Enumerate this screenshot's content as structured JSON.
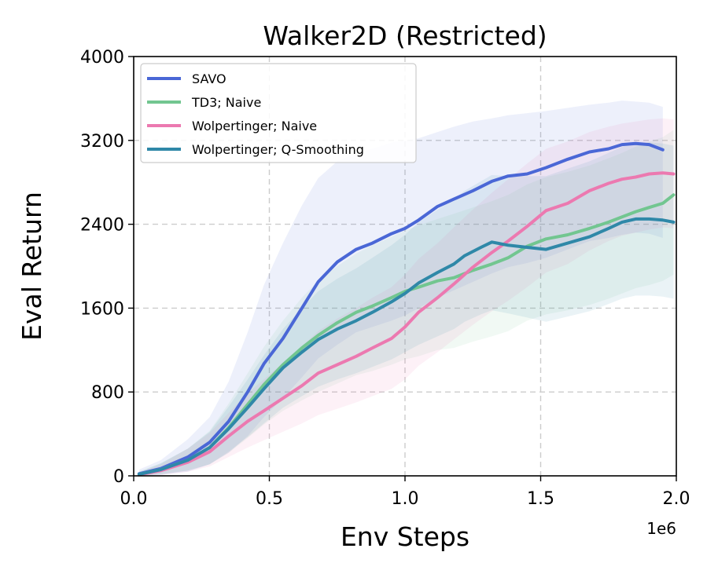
{
  "chart_data": {
    "type": "line",
    "title": "Walker2D (Restricted)",
    "xlabel": "Env Steps",
    "ylabel": "Eval Return",
    "x_offset_label": "1e6",
    "xlim": [
      0.0,
      2.0
    ],
    "ylim": [
      0,
      4000
    ],
    "xticks": [
      0.0,
      0.5,
      1.0,
      1.5,
      2.0
    ],
    "xtick_labels": [
      "0.0",
      "0.5",
      "1.0",
      "1.5",
      "2.0"
    ],
    "yticks": [
      0,
      800,
      1600,
      2400,
      3200,
      4000
    ],
    "ytick_labels": [
      "0",
      "800",
      "1600",
      "2400",
      "3200",
      "4000"
    ],
    "grid": true,
    "legend_position": "top-left",
    "series": [
      {
        "name": "SAVO",
        "color": "#4a67d6",
        "x": [
          0.02,
          0.1,
          0.2,
          0.28,
          0.35,
          0.42,
          0.48,
          0.55,
          0.62,
          0.68,
          0.75,
          0.82,
          0.88,
          0.95,
          1.0,
          1.05,
          1.12,
          1.18,
          1.25,
          1.32,
          1.38,
          1.45,
          1.52,
          1.6,
          1.68,
          1.75,
          1.8,
          1.85,
          1.9,
          1.95
        ],
        "y": [
          20,
          70,
          180,
          320,
          520,
          800,
          1070,
          1310,
          1600,
          1850,
          2040,
          2160,
          2220,
          2310,
          2360,
          2440,
          2570,
          2640,
          2720,
          2810,
          2860,
          2880,
          2940,
          3020,
          3090,
          3120,
          3160,
          3170,
          3160,
          3110
        ],
        "band_upper": [
          60,
          150,
          350,
          560,
          900,
          1370,
          1820,
          2220,
          2580,
          2840,
          3000,
          3080,
          3120,
          3180,
          3200,
          3220,
          3280,
          3330,
          3380,
          3410,
          3440,
          3460,
          3480,
          3510,
          3540,
          3560,
          3580,
          3570,
          3560,
          3520
        ],
        "band_lower": [
          0,
          10,
          40,
          110,
          220,
          380,
          560,
          740,
          940,
          1120,
          1250,
          1370,
          1420,
          1480,
          1530,
          1600,
          1700,
          1770,
          1850,
          1930,
          1990,
          2030,
          2080,
          2160,
          2240,
          2270,
          2300,
          2320,
          2310,
          2270
        ]
      },
      {
        "name": "TD3; Naive",
        "color": "#72c690",
        "x": [
          0.02,
          0.1,
          0.2,
          0.28,
          0.35,
          0.42,
          0.48,
          0.55,
          0.62,
          0.68,
          0.75,
          0.82,
          0.88,
          0.95,
          1.0,
          1.05,
          1.12,
          1.18,
          1.25,
          1.32,
          1.38,
          1.45,
          1.52,
          1.6,
          1.68,
          1.75,
          1.8,
          1.85,
          1.9,
          1.95,
          1.99
        ],
        "y": [
          15,
          60,
          150,
          270,
          460,
          680,
          870,
          1060,
          1220,
          1340,
          1460,
          1560,
          1620,
          1700,
          1760,
          1800,
          1860,
          1890,
          1960,
          2020,
          2080,
          2190,
          2260,
          2300,
          2360,
          2420,
          2470,
          2520,
          2560,
          2600,
          2680
        ],
        "band_upper": [
          40,
          120,
          260,
          430,
          690,
          980,
          1230,
          1480,
          1700,
          1860,
          2000,
          2120,
          2200,
          2280,
          2340,
          2390,
          2450,
          2500,
          2560,
          2620,
          2680,
          2780,
          2850,
          2900,
          2960,
          3030,
          3080,
          3140,
          3190,
          3230,
          3300
        ],
        "band_lower": [
          0,
          15,
          50,
          110,
          220,
          360,
          490,
          620,
          720,
          800,
          880,
          960,
          1000,
          1060,
          1110,
          1140,
          1200,
          1220,
          1280,
          1330,
          1380,
          1480,
          1540,
          1580,
          1630,
          1690,
          1740,
          1790,
          1820,
          1860,
          1920
        ]
      },
      {
        "name": "Wolpertinger; Naive",
        "color": "#ec79b0",
        "x": [
          0.02,
          0.1,
          0.2,
          0.28,
          0.35,
          0.42,
          0.48,
          0.55,
          0.62,
          0.68,
          0.75,
          0.82,
          0.88,
          0.95,
          1.0,
          1.05,
          1.12,
          1.18,
          1.25,
          1.32,
          1.38,
          1.45,
          1.52,
          1.6,
          1.68,
          1.75,
          1.8,
          1.85,
          1.9,
          1.95,
          1.99
        ],
        "y": [
          10,
          50,
          130,
          230,
          380,
          520,
          620,
          740,
          860,
          980,
          1060,
          1140,
          1220,
          1310,
          1420,
          1560,
          1700,
          1830,
          1990,
          2130,
          2240,
          2380,
          2530,
          2600,
          2720,
          2790,
          2830,
          2850,
          2880,
          2890,
          2880
        ],
        "band_upper": [
          30,
          110,
          260,
          410,
          600,
          790,
          920,
          1080,
          1240,
          1380,
          1500,
          1600,
          1700,
          1800,
          1920,
          2070,
          2220,
          2370,
          2540,
          2700,
          2830,
          2980,
          3120,
          3190,
          3280,
          3330,
          3360,
          3380,
          3400,
          3410,
          3400
        ],
        "band_lower": [
          0,
          10,
          40,
          90,
          180,
          270,
          340,
          420,
          500,
          580,
          640,
          700,
          760,
          830,
          920,
          1050,
          1180,
          1300,
          1440,
          1570,
          1670,
          1800,
          1940,
          2020,
          2150,
          2240,
          2290,
          2320,
          2350,
          2370,
          2360
        ]
      },
      {
        "name": "Wolpertinger; Q-Smoothing",
        "color": "#2f88a8",
        "x": [
          0.02,
          0.1,
          0.2,
          0.28,
          0.35,
          0.42,
          0.48,
          0.55,
          0.62,
          0.68,
          0.75,
          0.82,
          0.88,
          0.95,
          1.0,
          1.05,
          1.12,
          1.18,
          1.22,
          1.28,
          1.32,
          1.38,
          1.45,
          1.52,
          1.6,
          1.68,
          1.75,
          1.8,
          1.85,
          1.9,
          1.95,
          1.99
        ],
        "y": [
          15,
          60,
          150,
          270,
          450,
          650,
          830,
          1030,
          1180,
          1300,
          1400,
          1480,
          1560,
          1660,
          1740,
          1840,
          1940,
          2020,
          2100,
          2180,
          2230,
          2200,
          2180,
          2160,
          2220,
          2280,
          2360,
          2420,
          2450,
          2450,
          2440,
          2420
        ],
        "band_upper": [
          40,
          120,
          260,
          420,
          660,
          920,
          1150,
          1400,
          1600,
          1760,
          1880,
          1980,
          2080,
          2200,
          2300,
          2420,
          2540,
          2640,
          2720,
          2810,
          2870,
          2860,
          2860,
          2860,
          2930,
          3000,
          3080,
          3140,
          3170,
          3180,
          3170,
          3150
        ],
        "band_lower": [
          0,
          15,
          50,
          110,
          230,
          370,
          500,
          650,
          760,
          850,
          920,
          980,
          1040,
          1110,
          1180,
          1250,
          1330,
          1400,
          1470,
          1540,
          1580,
          1550,
          1510,
          1470,
          1520,
          1570,
          1640,
          1690,
          1720,
          1720,
          1710,
          1690
        ]
      }
    ]
  }
}
